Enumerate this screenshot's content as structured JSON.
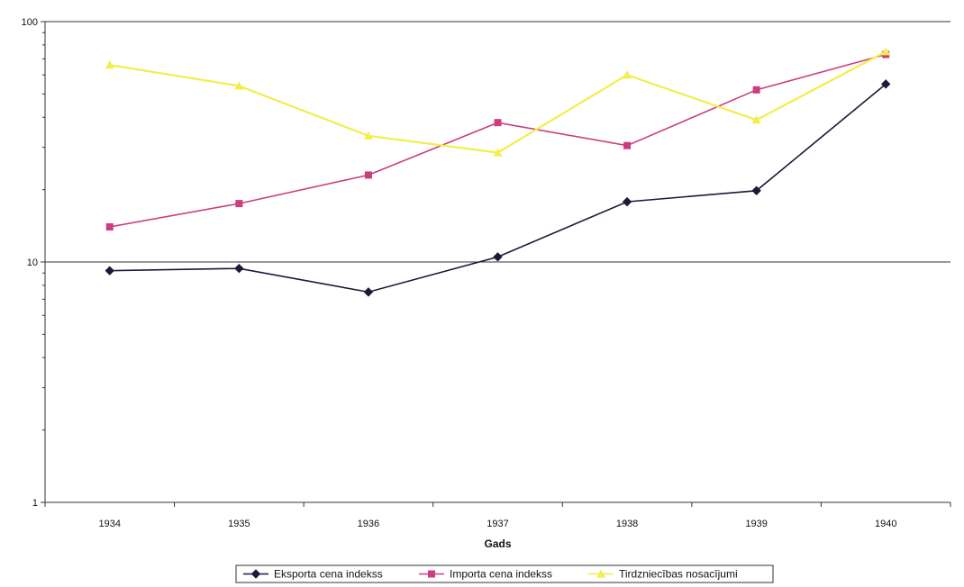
{
  "chart_data": {
    "type": "line",
    "title": "",
    "xlabel": "Gads",
    "ylabel": "",
    "yscale": "log",
    "ylim": [
      1,
      100
    ],
    "y_ticks": [
      "1",
      "10",
      "100"
    ],
    "categories": [
      "1934",
      "1935",
      "1936",
      "1937",
      "1938",
      "1939",
      "1940"
    ],
    "grid": "horizontal major gridlines",
    "legend_position": "bottom",
    "series": [
      {
        "name": "Eksporta cena indekss",
        "color": "#1a1a3a",
        "marker": "diamond",
        "values": [
          9.2,
          9.4,
          7.5,
          10.5,
          17.8,
          19.8,
          55
        ]
      },
      {
        "name": "Importa cena indekss",
        "color": "#cc3d7f",
        "marker": "square",
        "values": [
          14,
          17.5,
          23,
          38,
          30.5,
          52,
          73
        ]
      },
      {
        "name": "Tirdzniecības nosacījumi",
        "color": "#f2ee4a",
        "marker": "triangle",
        "values": [
          66,
          54,
          33.5,
          28.5,
          60,
          39,
          75
        ]
      }
    ]
  }
}
